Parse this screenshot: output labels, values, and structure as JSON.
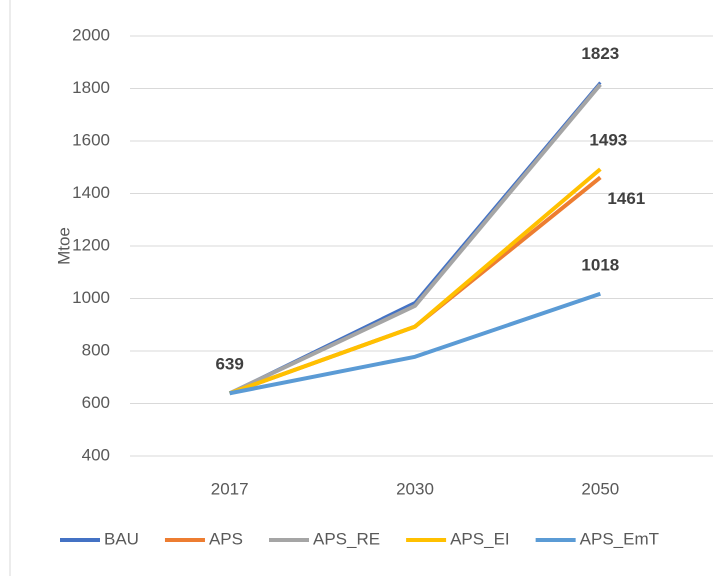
{
  "chart_data": {
    "type": "line",
    "y_axis_label": "Mtoe",
    "categories": [
      "2017",
      "2030",
      "2050"
    ],
    "series": [
      {
        "name": "BAU",
        "color": "#4472c4",
        "values": [
          639,
          985,
          1823
        ],
        "show_labels": [
          true,
          false,
          true
        ]
      },
      {
        "name": "APS",
        "color": "#ed7d31",
        "values": [
          639,
          893,
          1461
        ],
        "show_labels": [
          false,
          false,
          true
        ]
      },
      {
        "name": "APS_RE",
        "color": "#a5a5a5",
        "values": [
          639,
          972,
          1815
        ],
        "show_labels": [
          false,
          false,
          false
        ]
      },
      {
        "name": "APS_EI",
        "color": "#ffc000",
        "values": [
          639,
          893,
          1493
        ],
        "show_labels": [
          false,
          false,
          true
        ]
      },
      {
        "name": "APS_EmT",
        "color": "#5b9bd5",
        "values": [
          639,
          778,
          1018
        ],
        "show_labels": [
          false,
          false,
          true
        ]
      }
    ],
    "ylim": [
      400,
      2000
    ],
    "yticks": [
      400,
      600,
      800,
      1000,
      1200,
      1400,
      1600,
      1800,
      2000
    ],
    "grid": true,
    "legend": "bottom"
  }
}
